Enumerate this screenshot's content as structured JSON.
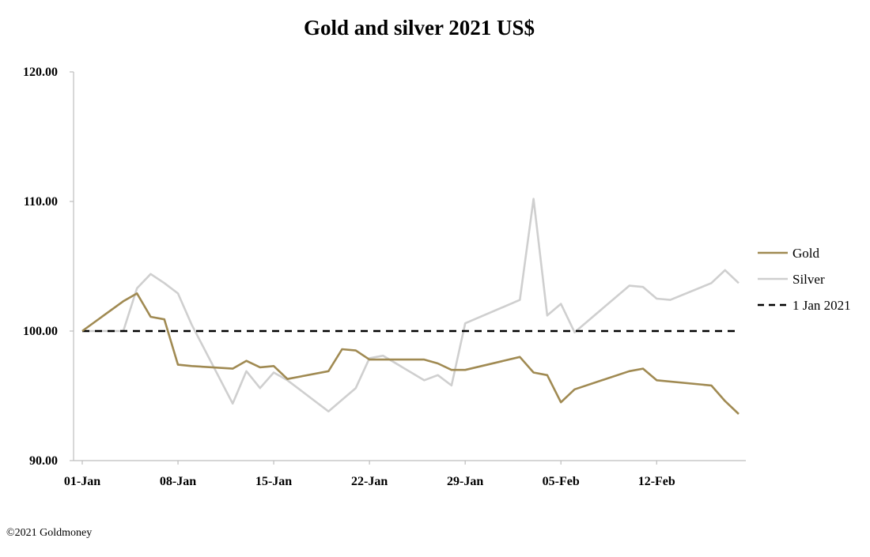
{
  "chart_data": {
    "type": "line",
    "title": "Gold and silver 2021  US$",
    "xlabel": "",
    "ylabel": "",
    "ylim": [
      90,
      120
    ],
    "y_ticks": [
      "90.00",
      "100.00",
      "110.00",
      "120.00"
    ],
    "x_ticks": [
      "01-Jan",
      "08-Jan",
      "15-Jan",
      "22-Jan",
      "29-Jan",
      "05-Feb",
      "12-Feb"
    ],
    "x_range_days": [
      0,
      48
    ],
    "legend_position": "right",
    "series": [
      {
        "name": "Gold",
        "color": "#a08a52",
        "style": "solid",
        "x": [
          0,
          3,
          4,
          5,
          6,
          7,
          8,
          11,
          12,
          13,
          14,
          15,
          18,
          19,
          20,
          21,
          22,
          25,
          26,
          27,
          28,
          32,
          33,
          34,
          35,
          36,
          40,
          41,
          42,
          46,
          47,
          48
        ],
        "values": [
          100.0,
          102.3,
          102.9,
          101.1,
          100.9,
          97.4,
          97.3,
          97.1,
          97.7,
          97.2,
          97.3,
          96.3,
          96.9,
          98.6,
          98.5,
          97.8,
          97.8,
          97.8,
          97.5,
          97.0,
          97.0,
          98.0,
          96.8,
          96.6,
          94.5,
          95.5,
          96.9,
          97.1,
          96.2,
          95.8,
          94.6,
          93.6
        ]
      },
      {
        "name": "Silver",
        "color": "#cfcfcf",
        "style": "solid",
        "x": [
          0,
          3,
          4,
          5,
          6,
          7,
          8,
          11,
          12,
          13,
          14,
          15,
          18,
          20,
          21,
          22,
          25,
          26,
          27,
          28,
          32,
          33,
          34,
          35,
          36,
          40,
          41,
          42,
          43,
          46,
          47,
          48
        ],
        "values": [
          100.0,
          100.0,
          103.3,
          104.4,
          103.7,
          102.9,
          100.5,
          94.4,
          96.9,
          95.6,
          96.8,
          96.2,
          93.8,
          95.6,
          97.9,
          98.1,
          96.2,
          96.6,
          95.8,
          100.6,
          102.4,
          110.2,
          101.2,
          102.1,
          99.9,
          103.5,
          103.4,
          102.5,
          102.4,
          103.7,
          104.7,
          103.7
        ]
      },
      {
        "name": "1 Jan 2021",
        "color": "#000000",
        "style": "dashed",
        "x": [
          0,
          48
        ],
        "values": [
          100.0,
          100.0
        ]
      }
    ]
  },
  "footer": {
    "copyright": "©2021 Goldmoney"
  }
}
